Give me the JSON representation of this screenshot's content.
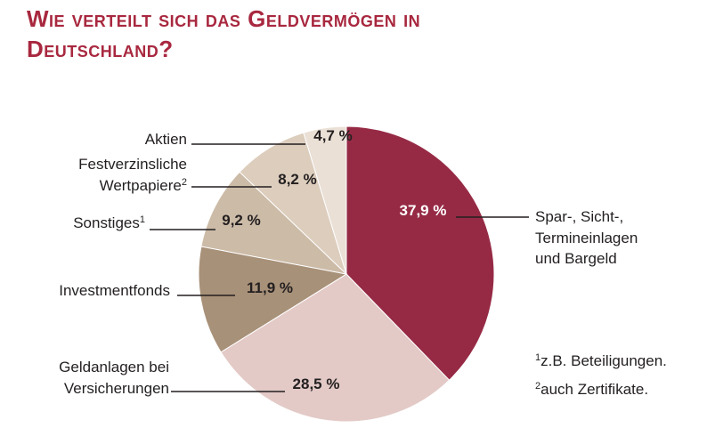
{
  "header": {
    "title_line1": "Wie verteilt sich das Geldvermögen in",
    "title_line2": "Deutschland?"
  },
  "chart_data": {
    "type": "pie",
    "title": "Wie verteilt sich das Geldvermögen in Deutschland?",
    "unit": "%",
    "slices": [
      {
        "label_lines": [
          "Spar-, Sicht-,",
          "Termineinlagen",
          "und Bargeld"
        ],
        "sup": "",
        "value": 37.9,
        "value_label": "37,9 %",
        "color": "#962a45"
      },
      {
        "label_lines": [
          "Geldanlagen bei",
          "Versicherungen"
        ],
        "sup": "",
        "value": 28.5,
        "value_label": "28,5 %",
        "color": "#e3cac7"
      },
      {
        "label_lines": [
          "Investmentfonds"
        ],
        "sup": "",
        "value": 11.9,
        "value_label": "11,9 %",
        "color": "#a89179"
      },
      {
        "label_lines": [
          "Sonstiges"
        ],
        "sup": "1",
        "value": 9.2,
        "value_label": "9,2 %",
        "color": "#ccbba7"
      },
      {
        "label_lines": [
          "Festverzinsliche",
          "Wertpapiere"
        ],
        "sup": "2",
        "value": 8.2,
        "value_label": "8,2 %",
        "color": "#dccdbd"
      },
      {
        "label_lines": [
          "Aktien"
        ],
        "sup": "",
        "value": 4.7,
        "value_label": "4,7 %",
        "color": "#eae0d6"
      }
    ],
    "footnotes": [
      {
        "sup": "1",
        "text": "z.B. Beteiligungen."
      },
      {
        "sup": "2",
        "text": "auch Zertifikate."
      }
    ]
  }
}
